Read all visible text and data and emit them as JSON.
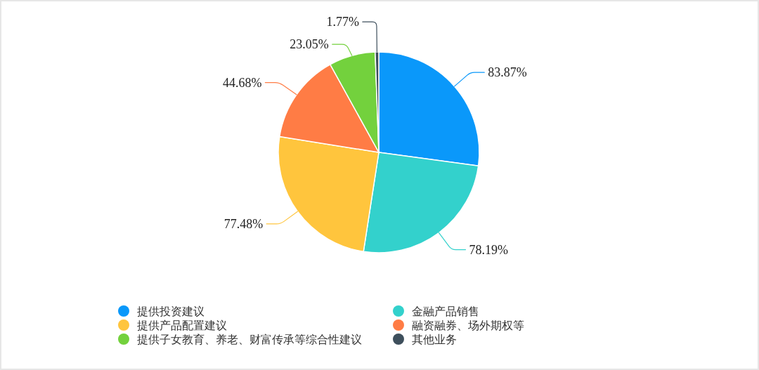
{
  "chart_data": {
    "type": "pie",
    "categories": [
      "提供投资建议",
      "金融产品销售",
      "提供产品配置建议",
      "融资融券、场外期权等",
      "提供子女教育、养老、财富传承等综合性建议",
      "其他业务"
    ],
    "values": [
      83.87,
      78.19,
      77.48,
      44.68,
      23.05,
      1.77
    ],
    "colors": [
      "#0a98fa",
      "#33d1cc",
      "#ffc53d",
      "#ff7c45",
      "#73d13d",
      "#3e4f5c"
    ],
    "value_labels": [
      "83.87%",
      "78.19%",
      "77.48%",
      "44.68%",
      "23.05%",
      "1.77%"
    ],
    "legend": "bottom"
  }
}
